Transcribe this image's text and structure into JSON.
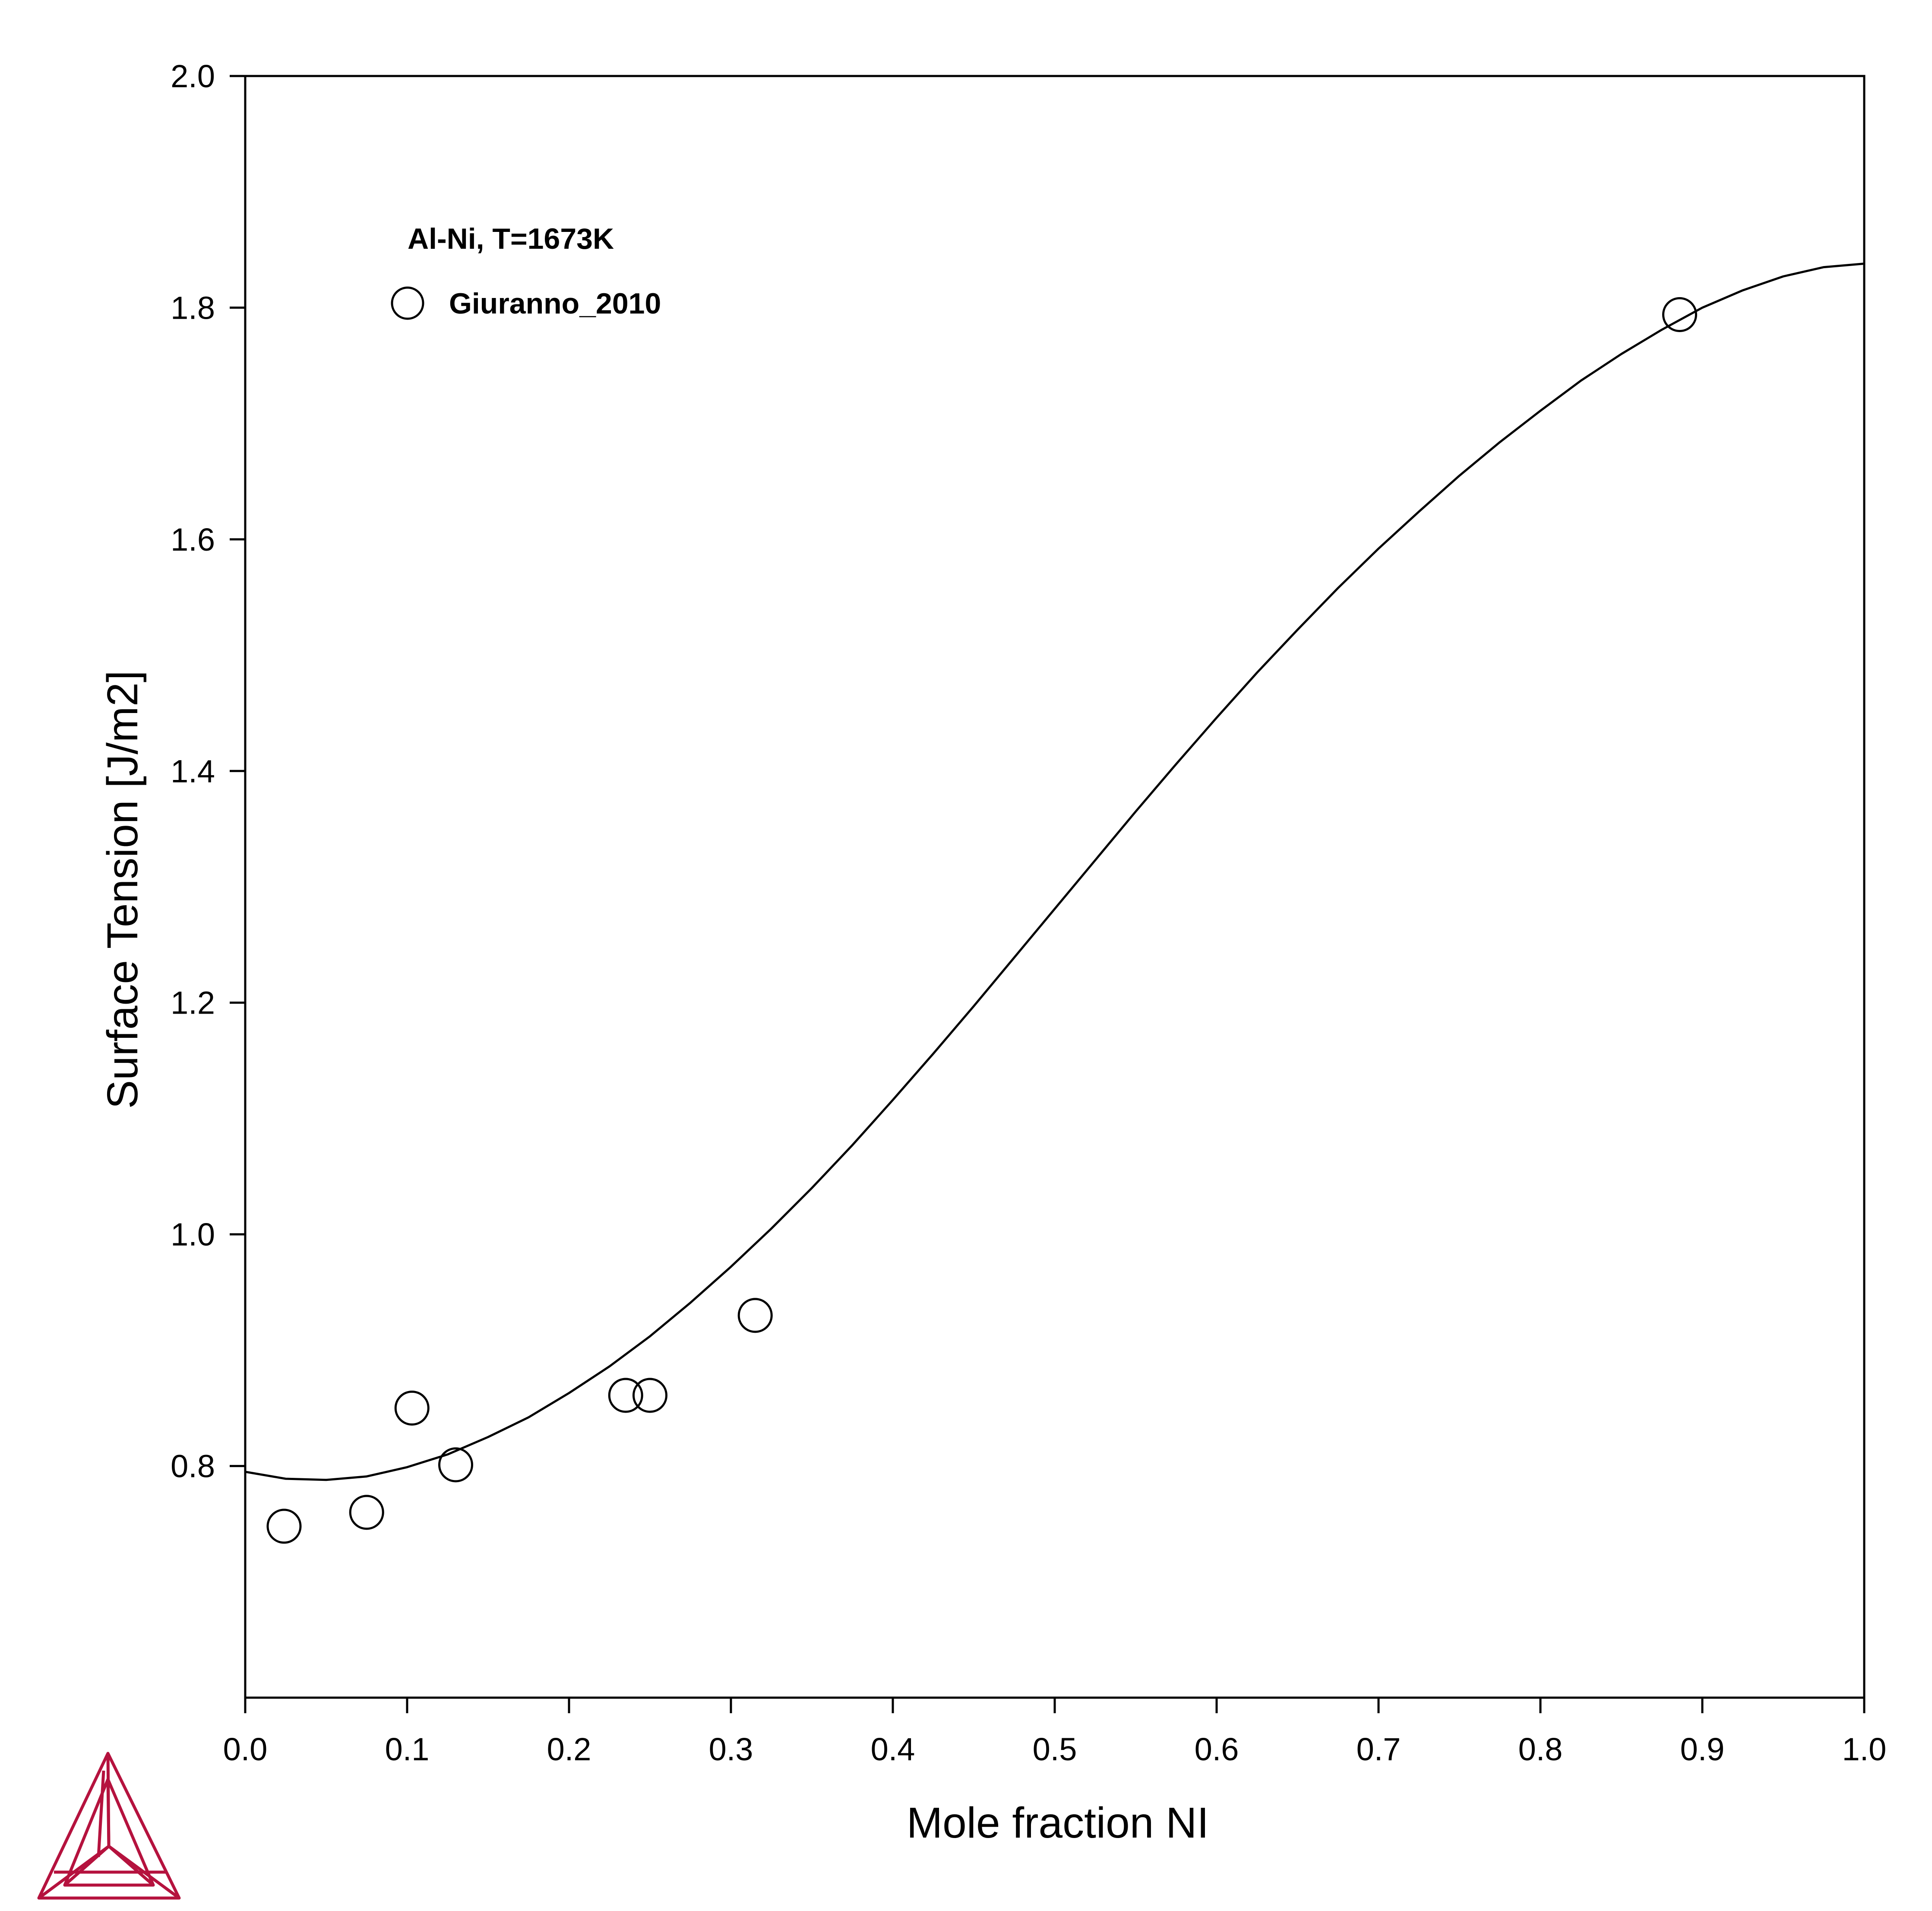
{
  "chart_data": {
    "type": "scatter",
    "title": "",
    "xlabel": "Mole fraction NI",
    "ylabel": "Surface Tension [J/m2]",
    "xlim": [
      0.0,
      1.0
    ],
    "ylim": [
      0.6,
      2.0
    ],
    "x_ticks": [
      0.0,
      0.1,
      0.2,
      0.3,
      0.4,
      0.5,
      0.6,
      0.7,
      0.8,
      0.9,
      1.0
    ],
    "x_tick_labels": [
      "0.0",
      "0.1",
      "0.2",
      "0.3",
      "0.4",
      "0.5",
      "0.6",
      "0.7",
      "0.8",
      "0.9",
      "1.0"
    ],
    "y_ticks": [
      0.8,
      1.0,
      1.2,
      1.4,
      1.6,
      1.8,
      2.0
    ],
    "y_tick_labels": [
      "0.8",
      "1.0",
      "1.2",
      "1.4",
      "1.6",
      "1.8",
      "2.0"
    ],
    "grid": false,
    "legend_position": "top-left",
    "annotation": "Al-Ni, T=1673K",
    "series": [
      {
        "name": "",
        "kind": "line",
        "x": [
          0.0,
          0.025,
          0.05,
          0.075,
          0.1,
          0.125,
          0.15,
          0.175,
          0.2,
          0.225,
          0.25,
          0.275,
          0.3,
          0.325,
          0.35,
          0.375,
          0.4,
          0.425,
          0.45,
          0.475,
          0.5,
          0.525,
          0.55,
          0.575,
          0.6,
          0.625,
          0.65,
          0.675,
          0.7,
          0.725,
          0.75,
          0.775,
          0.8,
          0.825,
          0.85,
          0.875,
          0.9,
          0.925,
          0.95,
          0.975,
          1.0
        ],
        "y": [
          0.795,
          0.789,
          0.788,
          0.791,
          0.799,
          0.81,
          0.825,
          0.842,
          0.863,
          0.886,
          0.912,
          0.941,
          0.972,
          1.005,
          1.04,
          1.077,
          1.116,
          1.156,
          1.197,
          1.239,
          1.281,
          1.323,
          1.365,
          1.406,
          1.446,
          1.485,
          1.522,
          1.558,
          1.592,
          1.624,
          1.655,
          1.684,
          1.711,
          1.737,
          1.76,
          1.781,
          1.8,
          1.815,
          1.827,
          1.835,
          1.838
        ]
      },
      {
        "name": "Giuranno_2010",
        "kind": "scatter",
        "marker": "open-circle",
        "x": [
          0.024,
          0.075,
          0.103,
          0.13,
          0.235,
          0.25,
          0.315,
          0.886
        ],
        "y": [
          0.748,
          0.76,
          0.85,
          0.801,
          0.861,
          0.861,
          0.93,
          1.794
        ]
      }
    ]
  },
  "logo": {
    "color": "#b5123e"
  }
}
